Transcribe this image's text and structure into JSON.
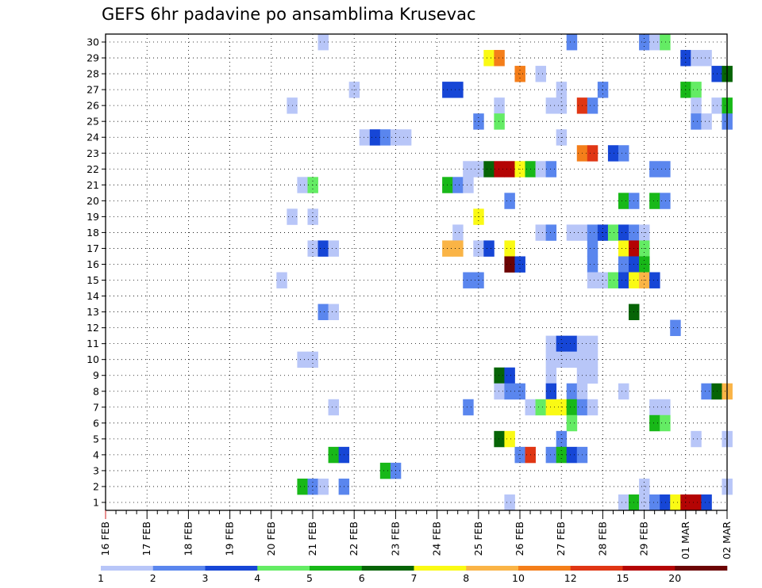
{
  "chart_data": {
    "type": "heatmap",
    "title": "GEFS 6hr padavine po ansamblima Krusevac",
    "xlabel": "",
    "ylabel": "",
    "x_tick_labels": [
      "16 FEB",
      "17 FEB",
      "18 FEB",
      "19 FEB",
      "20 FEB",
      "21 FEB",
      "22 FEB",
      "23 FEB",
      "24 FEB",
      "25 FEB",
      "26 FEB",
      "27 FEB",
      "28 FEB",
      "29 FEB",
      "01 MAR",
      "02 MAR"
    ],
    "y_tick_labels": [
      "1",
      "2",
      "3",
      "4",
      "5",
      "6",
      "7",
      "8",
      "9",
      "10",
      "11",
      "12",
      "13",
      "14",
      "15",
      "16",
      "17",
      "18",
      "19",
      "20",
      "21",
      "22",
      "23",
      "24",
      "25",
      "26",
      "27",
      "28",
      "29",
      "30"
    ],
    "x_unit": "6-hour step since 16 FEB 00z",
    "xlim": [
      0,
      60
    ],
    "ylim": [
      1,
      30
    ],
    "grid": true,
    "legend": {
      "placement": "bottom",
      "boundaries": [
        "1",
        "2",
        "3",
        "4",
        "5",
        "6",
        "7",
        "8",
        "10",
        "12",
        "15",
        "20"
      ],
      "colors": [
        "#b8c6f8",
        "#5a86ee",
        "#1646d6",
        "#64ec64",
        "#18b818",
        "#066406",
        "#fafa14",
        "#fab446",
        "#f47e1a",
        "#e03614",
        "#b40404",
        "#6c0404"
      ]
    },
    "cells": [
      {
        "t": 21,
        "m": 30,
        "v": 1.5
      },
      {
        "t": 45,
        "m": 30,
        "v": 2.5
      },
      {
        "t": 52,
        "m": 30,
        "v": 2.5
      },
      {
        "t": 53,
        "m": 30,
        "v": 1.5
      },
      {
        "t": 54,
        "m": 30,
        "v": 4.5
      },
      {
        "t": 37,
        "m": 29,
        "v": 7.5
      },
      {
        "t": 38,
        "m": 29,
        "v": 10.5
      },
      {
        "t": 56,
        "m": 29,
        "v": 3.5
      },
      {
        "t": 57,
        "m": 29,
        "v": 1.5
      },
      {
        "t": 58,
        "m": 29,
        "v": 1.5
      },
      {
        "t": 40,
        "m": 28,
        "v": 10.5
      },
      {
        "t": 42,
        "m": 28,
        "v": 1.5
      },
      {
        "t": 59,
        "m": 28,
        "v": 3.5
      },
      {
        "t": 60,
        "m": 28,
        "v": 6.5
      },
      {
        "t": 24,
        "m": 27,
        "v": 1.5
      },
      {
        "t": 33,
        "m": 27,
        "v": 3.5
      },
      {
        "t": 34,
        "m": 27,
        "v": 3.5
      },
      {
        "t": 44,
        "m": 27,
        "v": 1.5
      },
      {
        "t": 48,
        "m": 27,
        "v": 2.5
      },
      {
        "t": 56,
        "m": 27,
        "v": 5.5
      },
      {
        "t": 57,
        "m": 27,
        "v": 4.5
      },
      {
        "t": 18,
        "m": 26,
        "v": 1.5
      },
      {
        "t": 38,
        "m": 26,
        "v": 1.5
      },
      {
        "t": 43,
        "m": 26,
        "v": 1.5
      },
      {
        "t": 44,
        "m": 26,
        "v": 1.5
      },
      {
        "t": 46,
        "m": 26,
        "v": 12.5
      },
      {
        "t": 47,
        "m": 26,
        "v": 2.5
      },
      {
        "t": 57,
        "m": 26,
        "v": 1.5
      },
      {
        "t": 59,
        "m": 26,
        "v": 1.5
      },
      {
        "t": 60,
        "m": 26,
        "v": 5.5
      },
      {
        "t": 36,
        "m": 25,
        "v": 2.5
      },
      {
        "t": 38,
        "m": 25,
        "v": 4.5
      },
      {
        "t": 57,
        "m": 25,
        "v": 2.5
      },
      {
        "t": 58,
        "m": 25,
        "v": 1.5
      },
      {
        "t": 60,
        "m": 25,
        "v": 2.5
      },
      {
        "t": 25,
        "m": 24,
        "v": 1.5
      },
      {
        "t": 26,
        "m": 24,
        "v": 3.5
      },
      {
        "t": 27,
        "m": 24,
        "v": 2.5
      },
      {
        "t": 28,
        "m": 24,
        "v": 1.5
      },
      {
        "t": 29,
        "m": 24,
        "v": 1.5
      },
      {
        "t": 44,
        "m": 24,
        "v": 1.5
      },
      {
        "t": 46,
        "m": 23,
        "v": 10.5
      },
      {
        "t": 47,
        "m": 23,
        "v": 12.5
      },
      {
        "t": 49,
        "m": 23,
        "v": 3.5
      },
      {
        "t": 50,
        "m": 23,
        "v": 2.5
      },
      {
        "t": 35,
        "m": 22,
        "v": 1.5
      },
      {
        "t": 36,
        "m": 22,
        "v": 1.5
      },
      {
        "t": 37,
        "m": 22,
        "v": 6.5
      },
      {
        "t": 38,
        "m": 22,
        "v": 15.5
      },
      {
        "t": 39,
        "m": 22,
        "v": 15.5
      },
      {
        "t": 40,
        "m": 22,
        "v": 7.5
      },
      {
        "t": 41,
        "m": 22,
        "v": 5.5
      },
      {
        "t": 42,
        "m": 22,
        "v": 1.5
      },
      {
        "t": 43,
        "m": 22,
        "v": 2.5
      },
      {
        "t": 53,
        "m": 22,
        "v": 2.5
      },
      {
        "t": 54,
        "m": 22,
        "v": 2.5
      },
      {
        "t": 19,
        "m": 21,
        "v": 1.5
      },
      {
        "t": 20,
        "m": 21,
        "v": 4.5
      },
      {
        "t": 33,
        "m": 21,
        "v": 5.5
      },
      {
        "t": 34,
        "m": 21,
        "v": 2.5
      },
      {
        "t": 35,
        "m": 21,
        "v": 1.5
      },
      {
        "t": 39,
        "m": 20,
        "v": 2.5
      },
      {
        "t": 50,
        "m": 20,
        "v": 5.5
      },
      {
        "t": 51,
        "m": 20,
        "v": 2.5
      },
      {
        "t": 53,
        "m": 20,
        "v": 5.5
      },
      {
        "t": 54,
        "m": 20,
        "v": 2.5
      },
      {
        "t": 18,
        "m": 19,
        "v": 1.5
      },
      {
        "t": 20,
        "m": 19,
        "v": 1.5
      },
      {
        "t": 36,
        "m": 19,
        "v": 7.5
      },
      {
        "t": 34,
        "m": 18,
        "v": 1.5
      },
      {
        "t": 42,
        "m": 18,
        "v": 1.5
      },
      {
        "t": 43,
        "m": 18,
        "v": 2.5
      },
      {
        "t": 45,
        "m": 18,
        "v": 1.5
      },
      {
        "t": 46,
        "m": 18,
        "v": 1.5
      },
      {
        "t": 47,
        "m": 18,
        "v": 2.5
      },
      {
        "t": 48,
        "m": 18,
        "v": 3.5
      },
      {
        "t": 49,
        "m": 18,
        "v": 4.5
      },
      {
        "t": 50,
        "m": 18,
        "v": 3.5
      },
      {
        "t": 51,
        "m": 18,
        "v": 2.5
      },
      {
        "t": 52,
        "m": 18,
        "v": 1.5
      },
      {
        "t": 20,
        "m": 17,
        "v": 1.5
      },
      {
        "t": 21,
        "m": 17,
        "v": 3.5
      },
      {
        "t": 22,
        "m": 17,
        "v": 1.5
      },
      {
        "t": 33,
        "m": 17,
        "v": 9.0
      },
      {
        "t": 34,
        "m": 17,
        "v": 9.0
      },
      {
        "t": 36,
        "m": 17,
        "v": 1.5
      },
      {
        "t": 37,
        "m": 17,
        "v": 3.5
      },
      {
        "t": 39,
        "m": 17,
        "v": 7.5
      },
      {
        "t": 47,
        "m": 17,
        "v": 2.5
      },
      {
        "t": 50,
        "m": 17,
        "v": 7.5
      },
      {
        "t": 51,
        "m": 17,
        "v": 15.5
      },
      {
        "t": 52,
        "m": 17,
        "v": 4.5
      },
      {
        "t": 39,
        "m": 16,
        "v": 25.0
      },
      {
        "t": 40,
        "m": 16,
        "v": 3.5
      },
      {
        "t": 47,
        "m": 16,
        "v": 2.5
      },
      {
        "t": 50,
        "m": 16,
        "v": 2.5
      },
      {
        "t": 51,
        "m": 16,
        "v": 3.5
      },
      {
        "t": 52,
        "m": 16,
        "v": 5.5
      },
      {
        "t": 17,
        "m": 15,
        "v": 1.5
      },
      {
        "t": 35,
        "m": 15,
        "v": 2.5
      },
      {
        "t": 36,
        "m": 15,
        "v": 2.5
      },
      {
        "t": 47,
        "m": 15,
        "v": 1.5
      },
      {
        "t": 48,
        "m": 15,
        "v": 1.5
      },
      {
        "t": 49,
        "m": 15,
        "v": 4.5
      },
      {
        "t": 50,
        "m": 15,
        "v": 3.5
      },
      {
        "t": 51,
        "m": 15,
        "v": 7.5
      },
      {
        "t": 52,
        "m": 15,
        "v": 9.0
      },
      {
        "t": 53,
        "m": 15,
        "v": 3.5
      },
      {
        "t": 21,
        "m": 13,
        "v": 2.5
      },
      {
        "t": 22,
        "m": 13,
        "v": 1.5
      },
      {
        "t": 51,
        "m": 13,
        "v": 6.5
      },
      {
        "t": 55,
        "m": 12,
        "v": 2.5
      },
      {
        "t": 43,
        "m": 11,
        "v": 1.5
      },
      {
        "t": 44,
        "m": 11,
        "v": 3.5
      },
      {
        "t": 45,
        "m": 11,
        "v": 3.5
      },
      {
        "t": 46,
        "m": 11,
        "v": 1.5
      },
      {
        "t": 47,
        "m": 11,
        "v": 1.5
      },
      {
        "t": 19,
        "m": 10,
        "v": 1.5
      },
      {
        "t": 20,
        "m": 10,
        "v": 1.5
      },
      {
        "t": 43,
        "m": 10,
        "v": 1.5
      },
      {
        "t": 44,
        "m": 10,
        "v": 1.5
      },
      {
        "t": 45,
        "m": 10,
        "v": 1.5
      },
      {
        "t": 46,
        "m": 10,
        "v": 1.5
      },
      {
        "t": 47,
        "m": 10,
        "v": 1.5
      },
      {
        "t": 38,
        "m": 9,
        "v": 6.5
      },
      {
        "t": 39,
        "m": 9,
        "v": 3.5
      },
      {
        "t": 43,
        "m": 9,
        "v": 1.5
      },
      {
        "t": 46,
        "m": 9,
        "v": 1.5
      },
      {
        "t": 47,
        "m": 9,
        "v": 1.5
      },
      {
        "t": 38,
        "m": 8,
        "v": 1.5
      },
      {
        "t": 39,
        "m": 8,
        "v": 2.5
      },
      {
        "t": 40,
        "m": 8,
        "v": 2.5
      },
      {
        "t": 43,
        "m": 8,
        "v": 3.5
      },
      {
        "t": 45,
        "m": 8,
        "v": 2.5
      },
      {
        "t": 46,
        "m": 8,
        "v": 1.5
      },
      {
        "t": 50,
        "m": 8,
        "v": 1.5
      },
      {
        "t": 58,
        "m": 8,
        "v": 2.5
      },
      {
        "t": 59,
        "m": 8,
        "v": 6.5
      },
      {
        "t": 60,
        "m": 8,
        "v": 9.0
      },
      {
        "t": 22,
        "m": 7,
        "v": 1.5
      },
      {
        "t": 35,
        "m": 7,
        "v": 2.5
      },
      {
        "t": 41,
        "m": 7,
        "v": 1.5
      },
      {
        "t": 42,
        "m": 7,
        "v": 4.5
      },
      {
        "t": 43,
        "m": 7,
        "v": 7.5
      },
      {
        "t": 44,
        "m": 7,
        "v": 7.5
      },
      {
        "t": 45,
        "m": 7,
        "v": 5.5
      },
      {
        "t": 46,
        "m": 7,
        "v": 2.5
      },
      {
        "t": 47,
        "m": 7,
        "v": 1.5
      },
      {
        "t": 53,
        "m": 7,
        "v": 1.5
      },
      {
        "t": 54,
        "m": 7,
        "v": 1.5
      },
      {
        "t": 45,
        "m": 6,
        "v": 4.5
      },
      {
        "t": 53,
        "m": 6,
        "v": 5.5
      },
      {
        "t": 54,
        "m": 6,
        "v": 4.5
      },
      {
        "t": 38,
        "m": 5,
        "v": 6.5
      },
      {
        "t": 39,
        "m": 5,
        "v": 7.5
      },
      {
        "t": 44,
        "m": 5,
        "v": 2.5
      },
      {
        "t": 57,
        "m": 5,
        "v": 1.5
      },
      {
        "t": 60,
        "m": 5,
        "v": 1.5
      },
      {
        "t": 22,
        "m": 4,
        "v": 5.5
      },
      {
        "t": 23,
        "m": 4,
        "v": 3.5
      },
      {
        "t": 40,
        "m": 4,
        "v": 2.5
      },
      {
        "t": 41,
        "m": 4,
        "v": 12.5
      },
      {
        "t": 43,
        "m": 4,
        "v": 2.5
      },
      {
        "t": 44,
        "m": 4,
        "v": 5.5
      },
      {
        "t": 45,
        "m": 4,
        "v": 3.5
      },
      {
        "t": 46,
        "m": 4,
        "v": 2.5
      },
      {
        "t": 27,
        "m": 3,
        "v": 5.5
      },
      {
        "t": 28,
        "m": 3,
        "v": 2.5
      },
      {
        "t": 19,
        "m": 2,
        "v": 5.5
      },
      {
        "t": 20,
        "m": 2,
        "v": 2.5
      },
      {
        "t": 21,
        "m": 2,
        "v": 1.5
      },
      {
        "t": 23,
        "m": 2,
        "v": 2.5
      },
      {
        "t": 52,
        "m": 2,
        "v": 1.5
      },
      {
        "t": 60,
        "m": 2,
        "v": 1.5
      },
      {
        "t": 39,
        "m": 1,
        "v": 1.5
      },
      {
        "t": 50,
        "m": 1,
        "v": 1.5
      },
      {
        "t": 51,
        "m": 1,
        "v": 5.5
      },
      {
        "t": 52,
        "m": 1,
        "v": 1.5
      },
      {
        "t": 53,
        "m": 1,
        "v": 2.5
      },
      {
        "t": 54,
        "m": 1,
        "v": 3.5
      },
      {
        "t": 55,
        "m": 1,
        "v": 7.5
      },
      {
        "t": 56,
        "m": 1,
        "v": 17.5
      },
      {
        "t": 57,
        "m": 1,
        "v": 17.5
      },
      {
        "t": 58,
        "m": 1,
        "v": 3.5
      }
    ]
  }
}
